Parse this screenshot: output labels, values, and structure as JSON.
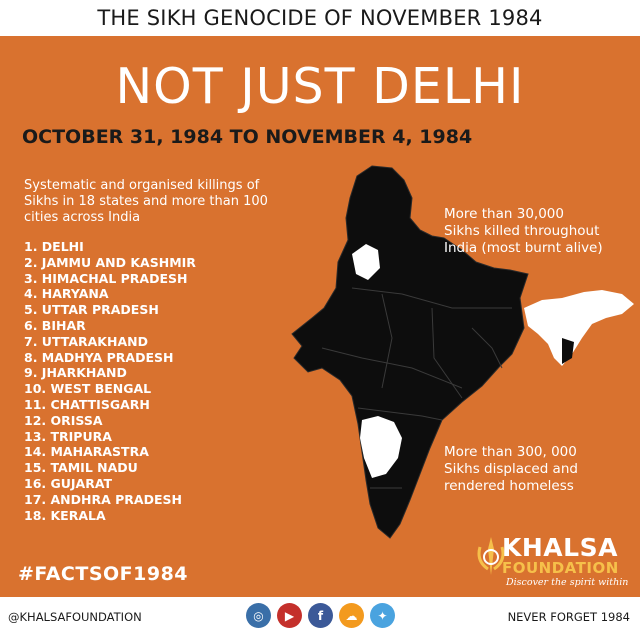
{
  "header": {
    "title": "THE SIKH GENOCIDE OF NOVEMBER 1984"
  },
  "main": {
    "headline": "NOT JUST DELHI",
    "date_range": "OCTOBER 31, 1984 TO NOVEMBER 4, 1984",
    "intro_lines": [
      "Systematic and organised killings of",
      "Sikhs in 18 states and more than 100",
      "cities across India"
    ],
    "states": [
      "1. DELHI",
      "2. JAMMU AND KASHMIR",
      "3. HIMACHAL PRADESH",
      "4. HARYANA",
      "5. UTTAR PRADESH",
      "6. BIHAR",
      "7. UTTARAKHAND",
      "8. MADHYA PRADESH",
      "9. JHARKHAND",
      "10. WEST BENGAL",
      "11. CHATTISGARH",
      "12. ORISSA",
      "13. TRIPURA",
      "14. MAHARASTRA",
      "15. TAMIL NADU",
      "16. GUJARAT",
      "17. ANDHRA PRADESH",
      "18. KERALA"
    ],
    "killed_note_lines": [
      "More than 30,000",
      "Sikhs killed throughout",
      "India (most burnt alive)"
    ],
    "displaced_note_lines": [
      "More than 300, 000",
      "Sikhs displaced and",
      "rendered homeless"
    ],
    "hashtag": "#FACTSOF1984"
  },
  "logo": {
    "word1": "KHALSA",
    "word2": "FOUNDATION",
    "tagline": "Discover the spirit within"
  },
  "footer": {
    "handle": "@KHALSAFOUNDATION",
    "slogan": "NEVER FORGET 1984",
    "socials": [
      {
        "icon": "instagram-icon",
        "glyph": "◎",
        "color": "#3a6fa8"
      },
      {
        "icon": "youtube-icon",
        "glyph": "▶",
        "color": "#c4302b"
      },
      {
        "icon": "facebook-icon",
        "glyph": "f",
        "color": "#3b5998"
      },
      {
        "icon": "soundcloud-icon",
        "glyph": "☁",
        "color": "#f39a1e"
      },
      {
        "icon": "twitter-icon",
        "glyph": "✦",
        "color": "#4aa3df"
      }
    ]
  },
  "colors": {
    "panel": "#d9722f",
    "map": "#0d0d0d",
    "highlight": "#ffffff",
    "accent": "#f6c04a"
  }
}
